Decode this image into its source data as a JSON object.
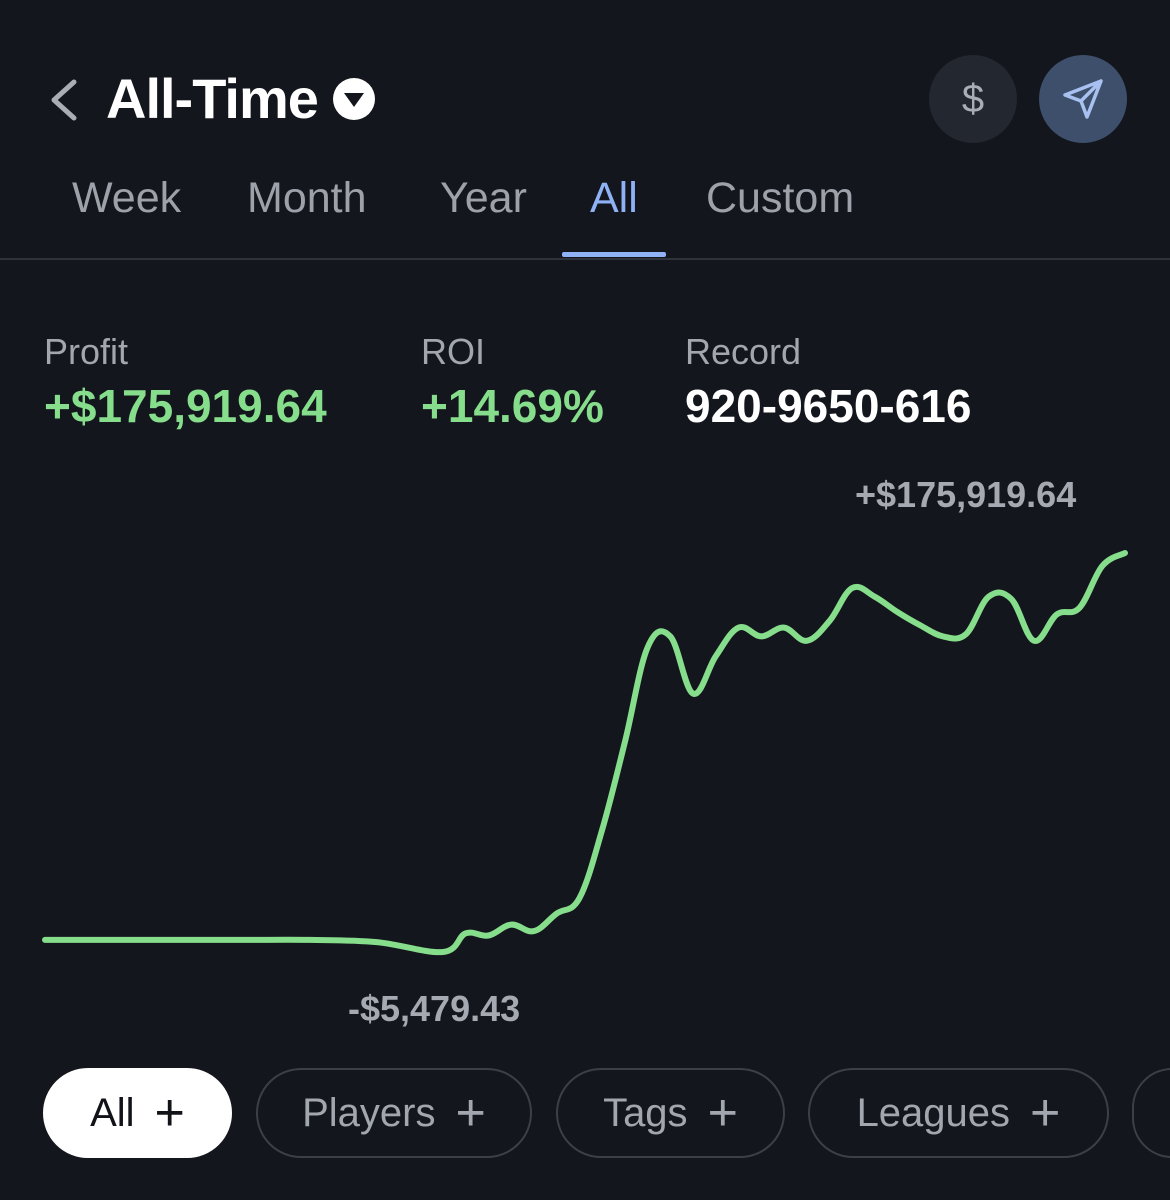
{
  "header": {
    "title": "All-Time",
    "dollar_label": "$",
    "icons": {
      "back": "chevron-left-icon",
      "title_caret": "caret-down-circle-icon",
      "share": "send-icon"
    }
  },
  "tabs": [
    {
      "label": "Week",
      "active": false
    },
    {
      "label": "Month",
      "active": false
    },
    {
      "label": "Year",
      "active": false
    },
    {
      "label": "All",
      "active": true
    },
    {
      "label": "Custom",
      "active": false
    }
  ],
  "stats": {
    "profit": {
      "label": "Profit",
      "value": "+$175,919.64"
    },
    "roi": {
      "label": "ROI",
      "value": "+14.69%"
    },
    "record": {
      "label": "Record",
      "value": "920-9650-616"
    }
  },
  "chart_labels": {
    "max": "+$175,919.64",
    "min": "-$5,479.43"
  },
  "filters": [
    {
      "label": "All",
      "active": true
    },
    {
      "label": "Players",
      "active": false
    },
    {
      "label": "Tags",
      "active": false
    },
    {
      "label": "Leagues",
      "active": false
    }
  ],
  "colors": {
    "background": "#13161c",
    "line": "#86dd8b",
    "accent": "#8fb1f5",
    "muted": "#9ca1aa"
  },
  "chart_data": {
    "type": "line",
    "title": "",
    "xlabel": "",
    "ylabel": "",
    "ylim": [
      -5479.43,
      175919.64
    ],
    "series": [
      {
        "values": [
          0,
          0,
          0,
          0,
          0,
          -1000,
          -5479.43,
          3000,
          2000,
          7000,
          4000,
          12000,
          19000,
          50000,
          90000,
          133000,
          138000,
          112000,
          129000,
          142000,
          138000,
          142000,
          136000,
          145000,
          160000,
          156000,
          149000,
          143000,
          138000,
          139000,
          156000,
          155000,
          136000,
          148000,
          151000,
          170000,
          175919.64
        ]
      }
    ]
  }
}
